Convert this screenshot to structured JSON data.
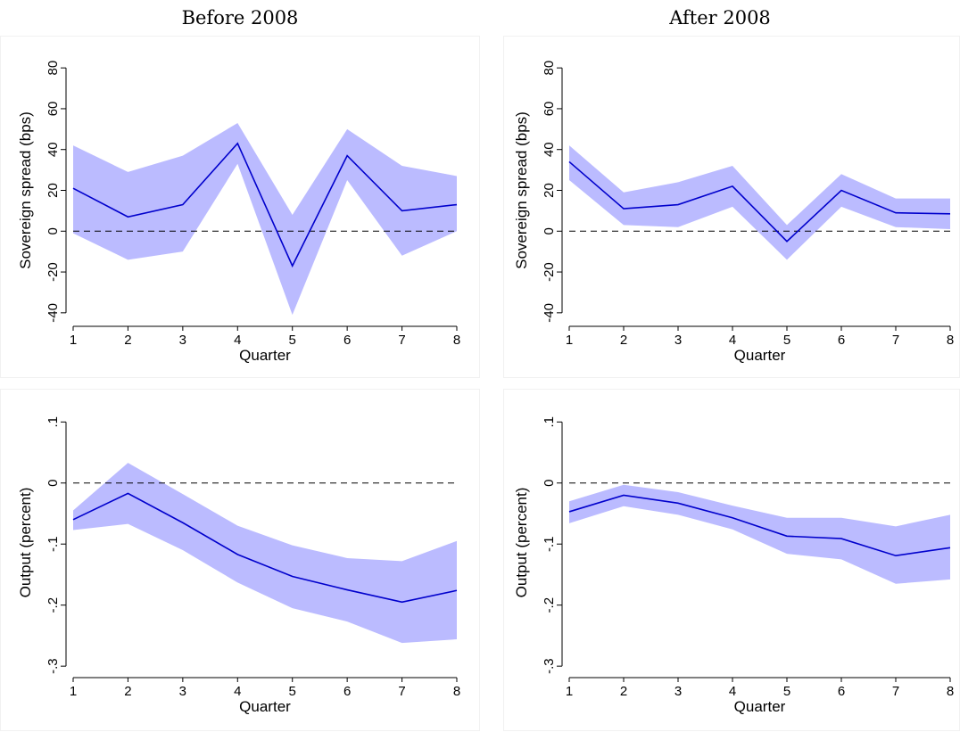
{
  "figure": {
    "column_titles": [
      "Before 2008",
      "After 2008"
    ]
  },
  "chart_data": [
    {
      "type": "line",
      "column_title": "Before 2008",
      "xlabel": "Quarter",
      "ylabel": "Sovereign spread (bps)",
      "x": [
        1,
        2,
        3,
        4,
        5,
        6,
        7,
        8
      ],
      "xticks": [
        1,
        2,
        3,
        4,
        5,
        6,
        7,
        8
      ],
      "ylim": [
        -44,
        84
      ],
      "yticks": [
        -40,
        -20,
        0,
        20,
        40,
        60,
        80
      ],
      "ytick_labels": [
        "-40",
        "-20",
        "0",
        "20",
        "40",
        "60",
        "80"
      ],
      "reference_line": 0,
      "series": [
        {
          "role": "estimate",
          "color": "#0000cc",
          "values": [
            21,
            7,
            13,
            43,
            -17,
            37,
            10,
            13
          ]
        },
        {
          "role": "band_upper",
          "color": "#bbbbff",
          "values": [
            42,
            29,
            37,
            53,
            8,
            50,
            32,
            27
          ]
        },
        {
          "role": "band_lower",
          "color": "#bbbbff",
          "values": [
            -1,
            -14,
            -10,
            33,
            -41,
            25,
            -12,
            0
          ]
        }
      ]
    },
    {
      "type": "line",
      "column_title": "After 2008",
      "xlabel": "Quarter",
      "ylabel": "Sovereign spread (bps)",
      "x": [
        1,
        2,
        3,
        4,
        5,
        6,
        7,
        8
      ],
      "xticks": [
        1,
        2,
        3,
        4,
        5,
        6,
        7,
        8
      ],
      "ylim": [
        -44,
        84
      ],
      "yticks": [
        -40,
        -20,
        0,
        20,
        40,
        60,
        80
      ],
      "ytick_labels": [
        "-40",
        "-20",
        "0",
        "20",
        "40",
        "60",
        "80"
      ],
      "reference_line": 0,
      "series": [
        {
          "role": "estimate",
          "color": "#0000cc",
          "values": [
            34,
            11,
            13,
            22,
            -5,
            20,
            9,
            8.5
          ]
        },
        {
          "role": "band_upper",
          "color": "#bbbbff",
          "values": [
            42,
            19,
            24,
            32,
            3,
            28,
            16,
            16
          ]
        },
        {
          "role": "band_lower",
          "color": "#bbbbff",
          "values": [
            25,
            3,
            2,
            12,
            -14,
            12,
            2,
            1
          ]
        }
      ]
    },
    {
      "type": "line",
      "column_title": "Before 2008",
      "xlabel": "Quarter",
      "ylabel": "Output (percent)",
      "x": [
        1,
        2,
        3,
        4,
        5,
        6,
        7,
        8
      ],
      "xticks": [
        1,
        2,
        3,
        4,
        5,
        6,
        7,
        8
      ],
      "ylim": [
        -0.31,
        0.115
      ],
      "yticks": [
        -0.3,
        -0.2,
        -0.1,
        0,
        0.1
      ],
      "ytick_labels": [
        "-.3",
        "-.2",
        "-.1",
        "0",
        ".1"
      ],
      "reference_line": 0,
      "series": [
        {
          "role": "estimate",
          "color": "#0000cc",
          "values": [
            -0.06,
            -0.017,
            -0.065,
            -0.117,
            -0.153,
            -0.175,
            -0.195,
            -0.176
          ]
        },
        {
          "role": "band_upper",
          "color": "#bbbbff",
          "values": [
            -0.045,
            0.033,
            -0.018,
            -0.07,
            -0.102,
            -0.123,
            -0.128,
            -0.095
          ]
        },
        {
          "role": "band_lower",
          "color": "#bbbbff",
          "values": [
            -0.077,
            -0.067,
            -0.11,
            -0.163,
            -0.205,
            -0.227,
            -0.262,
            -0.256
          ]
        }
      ]
    },
    {
      "type": "line",
      "column_title": "After 2008",
      "xlabel": "Quarter",
      "ylabel": "Output (percent)",
      "x": [
        1,
        2,
        3,
        4,
        5,
        6,
        7,
        8
      ],
      "xticks": [
        1,
        2,
        3,
        4,
        5,
        6,
        7,
        8
      ],
      "ylim": [
        -0.31,
        0.115
      ],
      "yticks": [
        -0.3,
        -0.2,
        -0.1,
        0,
        0.1
      ],
      "ytick_labels": [
        "-.3",
        "-.2",
        "-.1",
        "0",
        ".1"
      ],
      "reference_line": 0,
      "series": [
        {
          "role": "estimate",
          "color": "#0000cc",
          "values": [
            -0.047,
            -0.02,
            -0.033,
            -0.057,
            -0.087,
            -0.091,
            -0.119,
            -0.106
          ]
        },
        {
          "role": "band_upper",
          "color": "#bbbbff",
          "values": [
            -0.03,
            -0.003,
            -0.015,
            -0.037,
            -0.057,
            -0.057,
            -0.071,
            -0.052
          ]
        },
        {
          "role": "band_lower",
          "color": "#bbbbff",
          "values": [
            -0.066,
            -0.038,
            -0.052,
            -0.076,
            -0.116,
            -0.125,
            -0.165,
            -0.158
          ]
        }
      ]
    }
  ]
}
